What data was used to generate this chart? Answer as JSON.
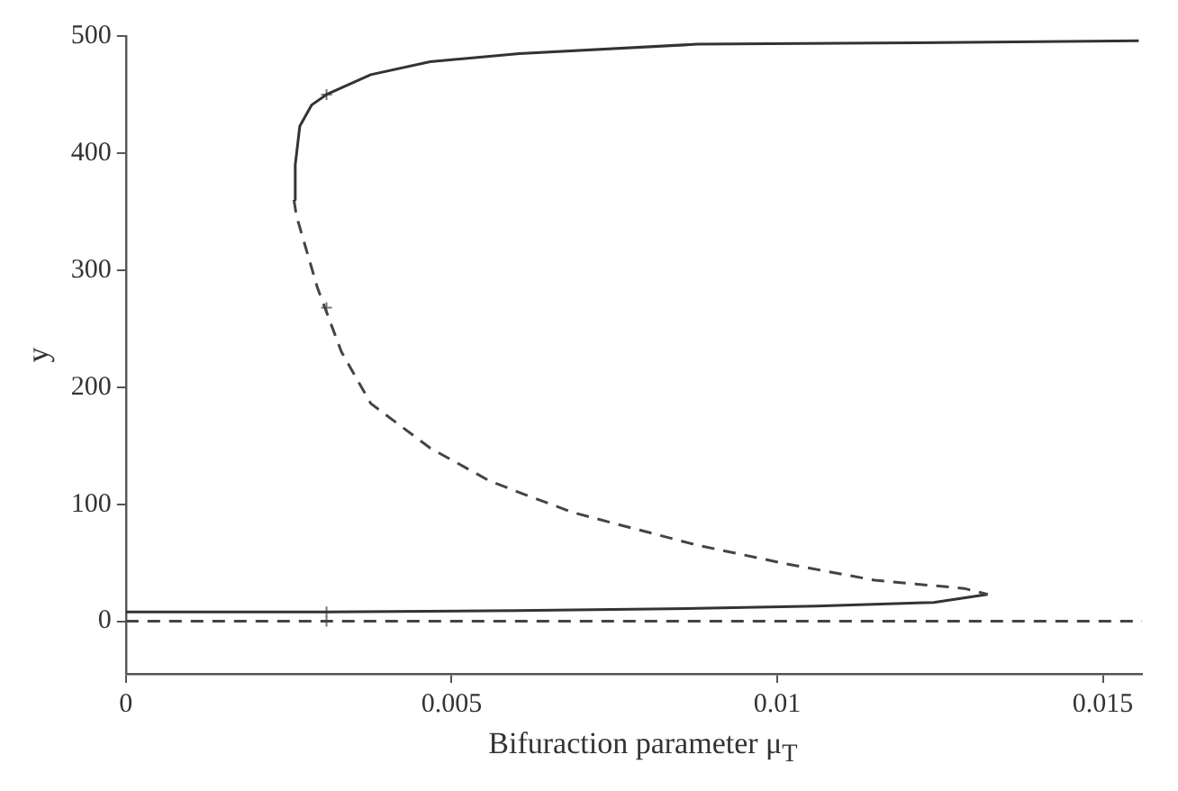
{
  "chart_data": {
    "type": "line",
    "xlabel": "Bifuraction parameter μ$_{T}$",
    "ylabel": "y",
    "xlim": [
      0,
      0.0156
    ],
    "xticks": [
      0,
      0.005,
      0.01,
      0.015
    ],
    "ylim": [
      -45,
      500
    ],
    "yticks": [
      0,
      100,
      200,
      300,
      400,
      500
    ],
    "grid": false,
    "legend": false,
    "series": [
      {
        "line_style": "solid",
        "color": "#333333",
        "x": [
          0.00258,
          0.0026,
          0.00267,
          0.00285,
          0.00308,
          0.00376,
          0.00467,
          0.00604,
          0.00877,
          0.0115,
          0.01555
        ],
        "values": [
          360,
          390,
          423,
          441,
          450,
          467,
          478,
          485,
          493,
          494,
          496
        ]
      },
      {
        "line_style": "dashed",
        "color": "#444444",
        "x": [
          0.00258,
          0.00262,
          0.00294,
          0.00331,
          0.00376,
          0.00467,
          0.00558,
          0.00604,
          0.00686,
          0.0074,
          0.00877,
          0.01014,
          0.0115,
          0.01287,
          0.01323
        ],
        "values": [
          360,
          346,
          285,
          230,
          186,
          148,
          120,
          110,
          93,
          85,
          65,
          49,
          35,
          28,
          23
        ]
      },
      {
        "line_style": "solid",
        "color": "#333333",
        "x": [
          0,
          0.00308,
          0.006,
          0.00877,
          0.0106,
          0.0124,
          0.01323
        ],
        "values": [
          8,
          8,
          9,
          11,
          13,
          16,
          23
        ]
      },
      {
        "line_style": "dashed",
        "color": "#444444",
        "x": [
          0,
          0.0156
        ],
        "values": [
          0,
          0
        ]
      },
      {
        "type": "scatter",
        "marker": "cross",
        "color": "#777777",
        "x": [
          0.00308,
          0.00308,
          0.00308,
          0.00308
        ],
        "values": [
          450,
          268,
          8,
          0
        ]
      }
    ]
  }
}
